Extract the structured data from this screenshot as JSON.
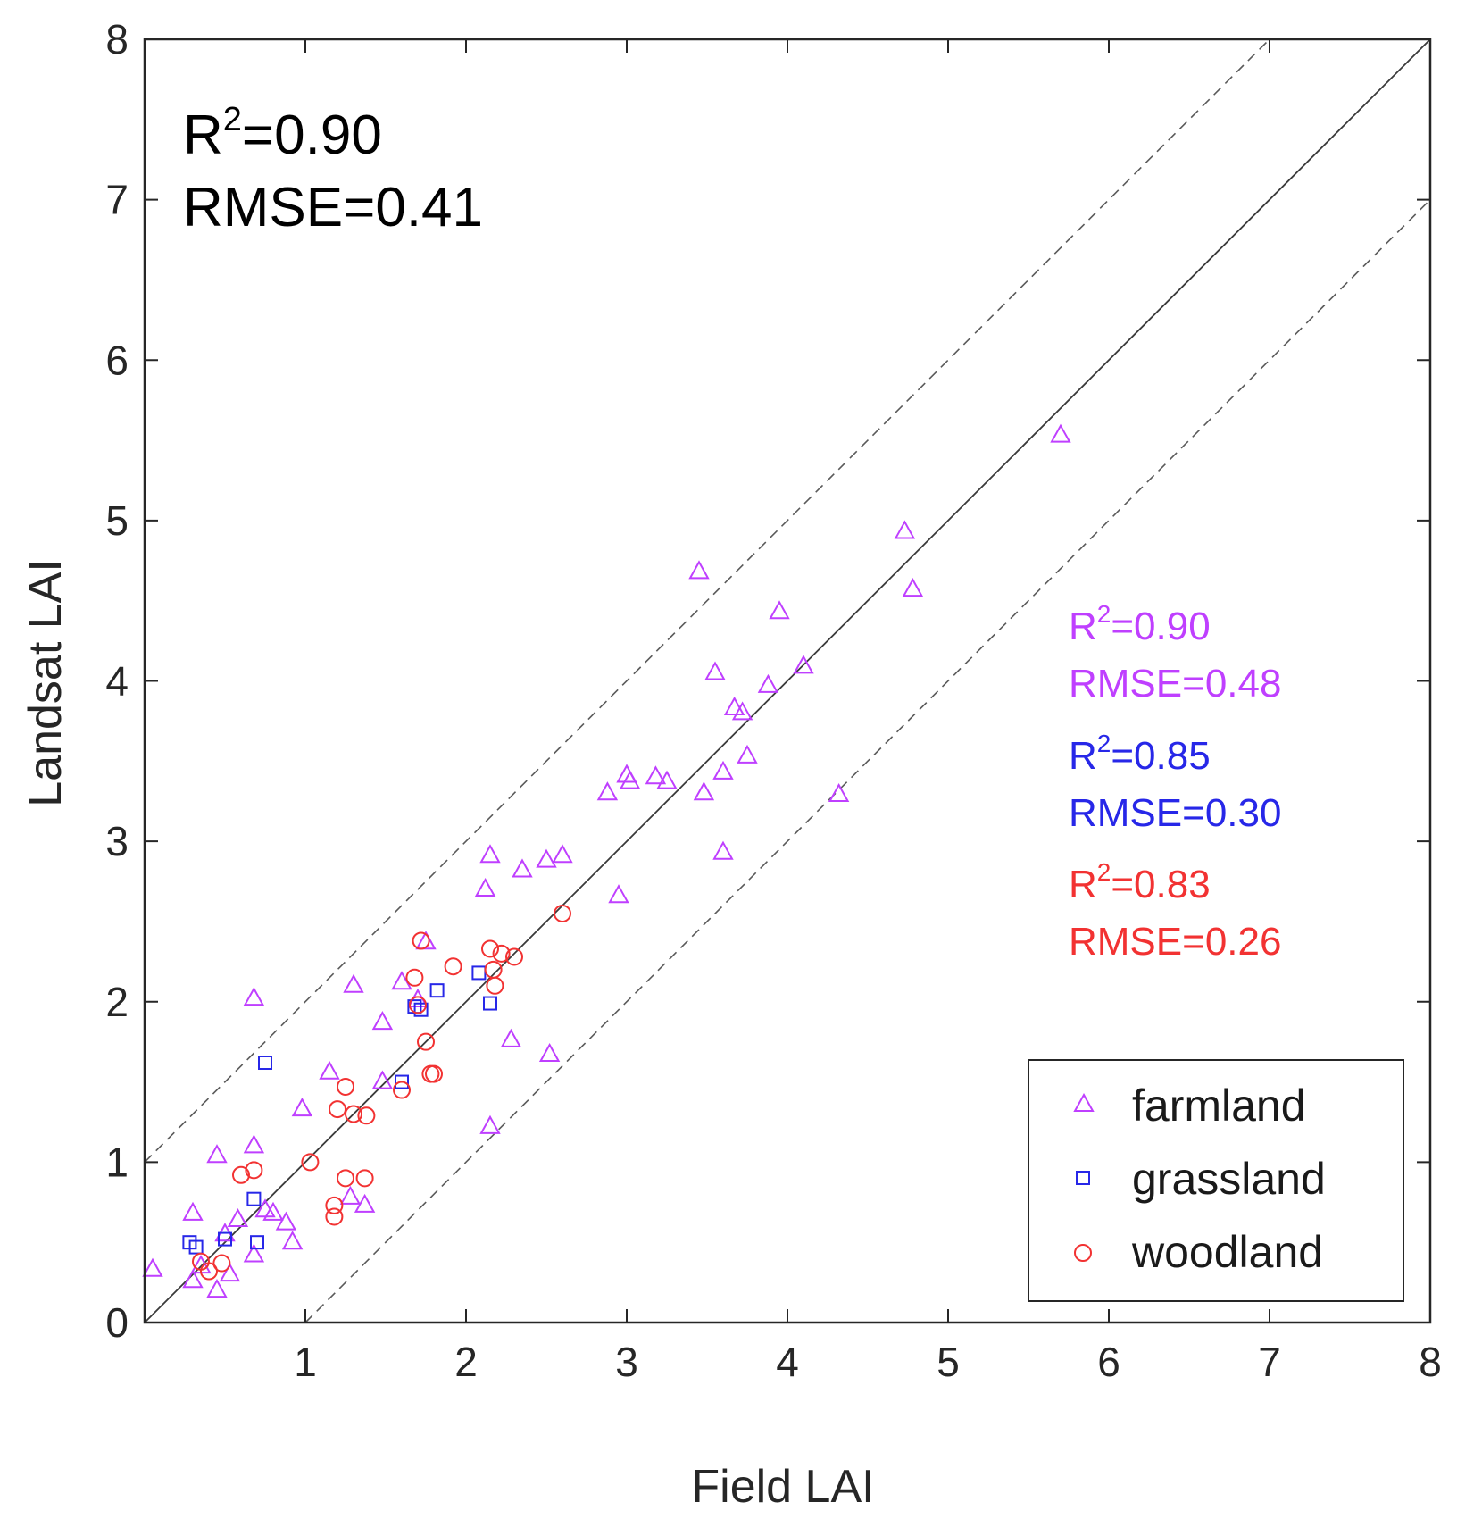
{
  "chart_data": {
    "type": "scatter",
    "title": "",
    "xlabel": "Field LAI",
    "ylabel": "Landsat LAI",
    "xlim": [
      0,
      8
    ],
    "ylim": [
      0,
      8
    ],
    "xticks": [
      "1",
      "2",
      "3",
      "4",
      "5",
      "6",
      "7",
      "8"
    ],
    "yticks": [
      "0",
      "1",
      "2",
      "3",
      "4",
      "5",
      "6",
      "7",
      "8"
    ],
    "grid": false,
    "legend_position": "bottom-right",
    "reference_lines": [
      {
        "style": "solid",
        "intercept": 0,
        "slope": 1
      },
      {
        "style": "dashed",
        "intercept": 1,
        "slope": 1
      },
      {
        "style": "dashed",
        "intercept": -1,
        "slope": 1
      }
    ],
    "overall_stats": {
      "r2_label": "R",
      "r2_sup": "2",
      "r2_value": "=0.90",
      "rmse": "RMSE=0.41",
      "color": "#000000"
    },
    "series": [
      {
        "name": "farmland",
        "marker": "triangle",
        "color": "#bf3fff",
        "stats": {
          "r2_label": "R",
          "r2_sup": "2",
          "r2_value": "=0.90",
          "rmse": "RMSE=0.48"
        },
        "points": [
          [
            0.05,
            0.33
          ],
          [
            0.3,
            0.26
          ],
          [
            0.3,
            0.68
          ],
          [
            0.35,
            0.35
          ],
          [
            0.45,
            0.2
          ],
          [
            0.45,
            1.04
          ],
          [
            0.5,
            0.55
          ],
          [
            0.53,
            0.3
          ],
          [
            0.58,
            0.64
          ],
          [
            0.68,
            0.42
          ],
          [
            0.68,
            1.1
          ],
          [
            0.68,
            2.02
          ],
          [
            0.75,
            0.7
          ],
          [
            0.8,
            0.68
          ],
          [
            0.88,
            0.62
          ],
          [
            0.92,
            0.5
          ],
          [
            0.98,
            1.33
          ],
          [
            1.15,
            1.56
          ],
          [
            1.28,
            0.78
          ],
          [
            1.3,
            2.1
          ],
          [
            1.37,
            0.73
          ],
          [
            1.48,
            1.87
          ],
          [
            1.48,
            1.5
          ],
          [
            1.6,
            2.12
          ],
          [
            1.7,
            2.01
          ],
          [
            1.75,
            2.37
          ],
          [
            2.12,
            2.7
          ],
          [
            2.15,
            1.22
          ],
          [
            2.15,
            2.91
          ],
          [
            2.28,
            1.76
          ],
          [
            2.35,
            2.82
          ],
          [
            2.5,
            2.88
          ],
          [
            2.52,
            1.67
          ],
          [
            2.6,
            2.91
          ],
          [
            2.88,
            3.3
          ],
          [
            2.95,
            2.66
          ],
          [
            3.0,
            3.41
          ],
          [
            3.02,
            3.37
          ],
          [
            3.18,
            3.4
          ],
          [
            3.25,
            3.37
          ],
          [
            3.45,
            4.68
          ],
          [
            3.48,
            3.3
          ],
          [
            3.55,
            4.05
          ],
          [
            3.6,
            3.43
          ],
          [
            3.6,
            2.93
          ],
          [
            3.67,
            3.83
          ],
          [
            3.72,
            3.8
          ],
          [
            3.75,
            3.53
          ],
          [
            3.88,
            3.97
          ],
          [
            3.95,
            4.43
          ],
          [
            4.1,
            4.09
          ],
          [
            4.32,
            3.29
          ],
          [
            4.73,
            4.93
          ],
          [
            4.78,
            4.57
          ],
          [
            5.7,
            5.53
          ]
        ]
      },
      {
        "name": "grassland",
        "marker": "square",
        "color": "#2727e8",
        "stats": {
          "r2_label": "R",
          "r2_sup": "2",
          "r2_value": "=0.85",
          "rmse": "RMSE=0.30"
        },
        "points": [
          [
            0.28,
            0.5
          ],
          [
            0.32,
            0.47
          ],
          [
            0.5,
            0.52
          ],
          [
            0.68,
            0.77
          ],
          [
            0.7,
            0.5
          ],
          [
            0.75,
            1.62
          ],
          [
            1.6,
            1.5
          ],
          [
            1.68,
            1.97
          ],
          [
            1.72,
            1.95
          ],
          [
            1.82,
            2.07
          ],
          [
            2.08,
            2.18
          ],
          [
            2.15,
            1.99
          ]
        ]
      },
      {
        "name": "woodland",
        "marker": "circle",
        "color": "#f23232",
        "stats": {
          "r2_label": "R",
          "r2_sup": "2",
          "r2_value": "=0.83",
          "rmse": "RMSE=0.26"
        },
        "points": [
          [
            0.35,
            0.38
          ],
          [
            0.4,
            0.32
          ],
          [
            0.48,
            0.37
          ],
          [
            0.6,
            0.92
          ],
          [
            0.68,
            0.95
          ],
          [
            1.03,
            1.0
          ],
          [
            1.18,
            0.73
          ],
          [
            1.18,
            0.66
          ],
          [
            1.2,
            1.33
          ],
          [
            1.25,
            0.9
          ],
          [
            1.25,
            1.47
          ],
          [
            1.3,
            1.3
          ],
          [
            1.37,
            0.9
          ],
          [
            1.38,
            1.29
          ],
          [
            1.6,
            1.45
          ],
          [
            1.68,
            2.15
          ],
          [
            1.7,
            1.98
          ],
          [
            1.72,
            2.38
          ],
          [
            1.75,
            1.75
          ],
          [
            1.78,
            1.55
          ],
          [
            1.8,
            1.55
          ],
          [
            1.92,
            2.22
          ],
          [
            2.15,
            2.33
          ],
          [
            2.17,
            2.2
          ],
          [
            2.18,
            2.1
          ],
          [
            2.22,
            2.3
          ],
          [
            2.3,
            2.28
          ],
          [
            2.6,
            2.55
          ]
        ]
      }
    ]
  }
}
